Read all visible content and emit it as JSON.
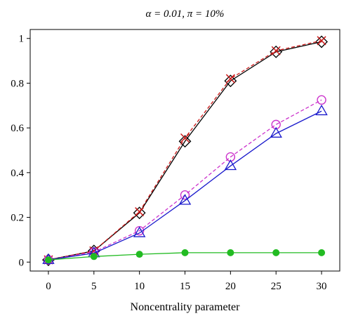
{
  "chart_data": {
    "type": "line",
    "title": "α = 0.01, π = 10%",
    "xlabel": "Noncentrality parameter",
    "ylabel": "",
    "xlim": [
      -2,
      32
    ],
    "ylim": [
      -0.04,
      1.04
    ],
    "xticks": [
      0,
      5,
      10,
      15,
      20,
      25,
      30
    ],
    "yticks": [
      0,
      0.2,
      0.4,
      0.6,
      0.8,
      1
    ],
    "ytick_labels": [
      "0",
      "0.2",
      "0.4",
      "0.6",
      "0.8",
      "1"
    ],
    "grid": false,
    "x": [
      0,
      5,
      10,
      15,
      20,
      25,
      30
    ],
    "series": [
      {
        "marker": "diamond",
        "color": "#000000",
        "dash": "solid",
        "values": [
          0.01,
          0.05,
          0.22,
          0.54,
          0.81,
          0.94,
          0.985
        ]
      },
      {
        "marker": "cross",
        "color": "#cc1a1a",
        "dash": "dashed",
        "values": [
          0.01,
          0.05,
          0.225,
          0.555,
          0.82,
          0.945,
          0.99
        ]
      },
      {
        "marker": "circle-open",
        "color": "#cc33cc",
        "dash": "dashed",
        "values": [
          0.01,
          0.045,
          0.14,
          0.3,
          0.47,
          0.615,
          0.725
        ]
      },
      {
        "marker": "triangle",
        "color": "#1a1acc",
        "dash": "solid",
        "values": [
          0.01,
          0.04,
          0.13,
          0.275,
          0.43,
          0.575,
          0.675
        ]
      },
      {
        "marker": "circle-filled",
        "color": "#22bb22",
        "dash": "solid",
        "values": [
          0.01,
          0.025,
          0.035,
          0.042,
          0.042,
          0.042,
          0.042
        ]
      }
    ]
  }
}
